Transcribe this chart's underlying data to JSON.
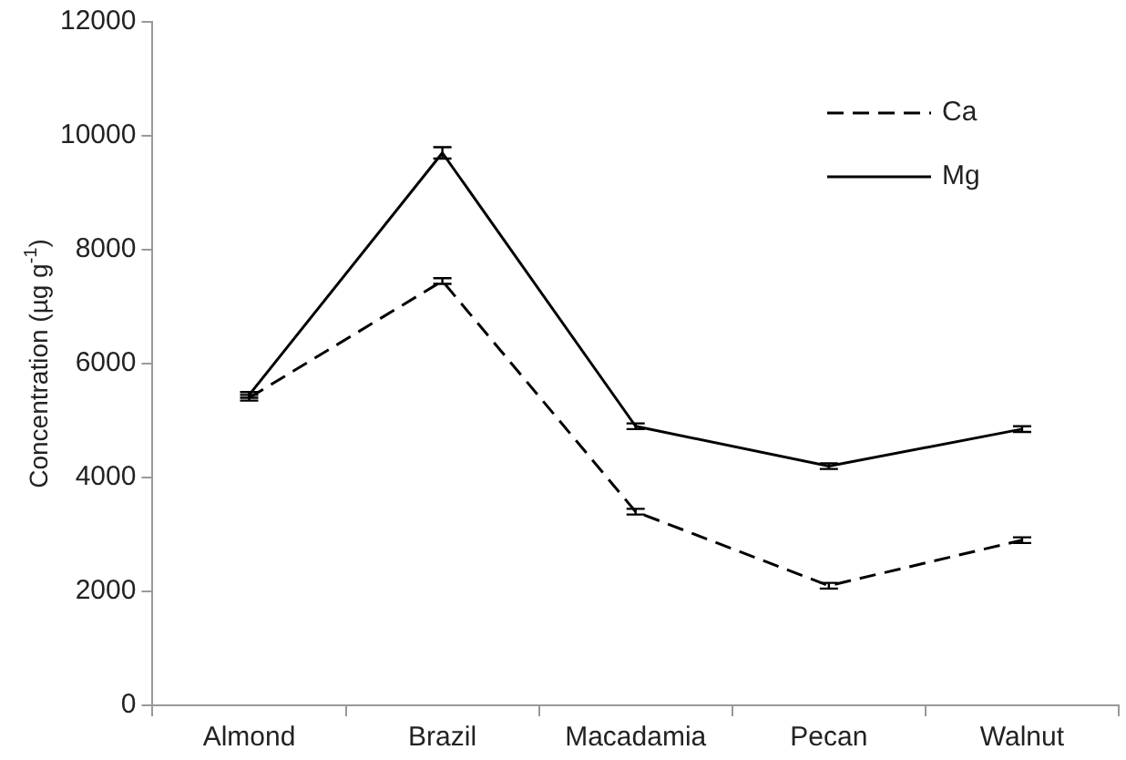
{
  "chart_data": {
    "type": "line",
    "ylabel": "Concentration (µg g$^{-1}$)",
    "categories": [
      "Almond",
      "Brazil",
      "Macadamia",
      "Pecan",
      "Walnut"
    ],
    "series": [
      {
        "name": "Ca",
        "color": "#000000",
        "line_style": "dashed",
        "values": [
          5400,
          7450,
          3400,
          2100,
          2900
        ],
        "errors": [
          50,
          50,
          50,
          50,
          50
        ]
      },
      {
        "name": "Mg",
        "color": "#000000",
        "line_style": "solid",
        "values": [
          5450,
          9700,
          4900,
          4200,
          4850
        ],
        "errors": [
          50,
          100,
          50,
          50,
          50
        ]
      }
    ],
    "ylim": [
      0,
      12000
    ],
    "yticks": [
      0,
      2000,
      4000,
      6000,
      8000,
      10000,
      12000
    ],
    "grid": false,
    "legend": "top right",
    "marker": "none"
  }
}
